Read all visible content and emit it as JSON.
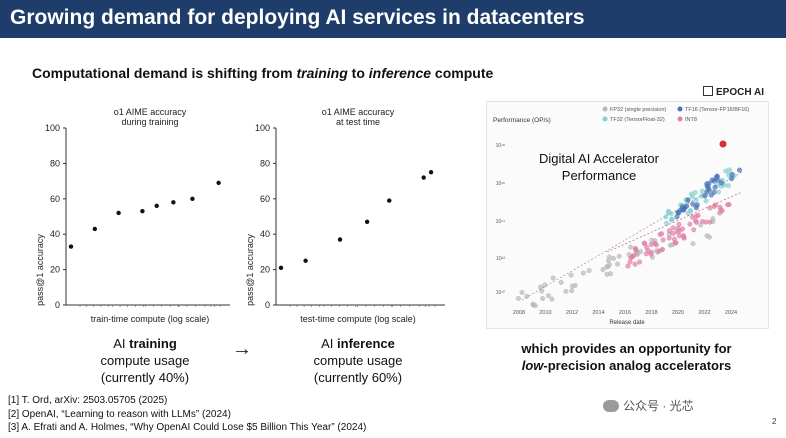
{
  "header": {
    "title": "Growing demand for deploying AI services in datacenters"
  },
  "subtitle": {
    "pre": "Computational demand is shifting from ",
    "em1": "training",
    "mid": " to ",
    "em2": "inference",
    "post": " compute"
  },
  "training_chart": {
    "title_line1": "o1 AIME accuracy",
    "title_line2": "during training",
    "ylabel": "pass@1 accuracy",
    "xlabel": "train-time compute (log scale)",
    "yticks": [
      "0",
      "20",
      "40",
      "60",
      "80",
      "100"
    ]
  },
  "inference_chart": {
    "title_line1": "o1 AIME accuracy",
    "title_line2": "at test time",
    "ylabel": "pass@1 accuracy",
    "xlabel": "test-time compute (log scale)",
    "yticks": [
      "0",
      "20",
      "40",
      "60",
      "80",
      "100"
    ]
  },
  "caption_training": {
    "ai": "AI ",
    "bold": "training",
    "line2": "compute usage",
    "line3": "(currently 40%)"
  },
  "caption_inference": {
    "ai": "AI ",
    "bold": "inference",
    "line2": "compute usage",
    "line3": "(currently 60%)"
  },
  "arrow": "→",
  "epoch": {
    "logo": "EPOCH AI",
    "title_line1": "Digital AI Accelerator",
    "title_line2": "Performance",
    "yaxis_label": "Performance (OP/s)",
    "xaxis_label": "Release date",
    "legend": [
      "FP32 (single precision)",
      "TF16 (Tensor-FP16/BF16)",
      "TF32 (TensorFloat-32)",
      "INT8"
    ],
    "yticks": [
      "10¹⁸",
      "10¹⁶",
      "10¹⁴",
      "10¹²",
      "10¹⁰"
    ],
    "xticks": [
      "2008",
      "2010",
      "2012",
      "2014",
      "2016",
      "2018",
      "2020",
      "2022",
      "2024"
    ],
    "colors": {
      "fp32": "#b8b8b8",
      "tf16": "#4a74b8",
      "tf32": "#86d0d3",
      "int8": "#e080a6"
    }
  },
  "right_caption": {
    "line1": "which provides an opportunity for",
    "em": "low",
    "line2_rest": "-precision analog accelerators"
  },
  "references": [
    "[1] T. Ord, arXiv: 2503.05705 (2025)",
    "[2] OpenAI, “Learning to reason with LLMs” (2024)",
    "[3] A. Efrati and A. Holmes, “Why OpenAI Could Lose $5 Billion This Year” (2024)"
  ],
  "watermark": "公众号 · 光芯",
  "page_number": "2",
  "chart_data": [
    {
      "type": "scatter",
      "title": "o1 AIME accuracy during training",
      "xlabel": "train-time compute (log scale)",
      "ylabel": "pass@1 accuracy",
      "ylim": [
        0,
        100
      ],
      "points": [
        {
          "x": 1,
          "y": 33
        },
        {
          "x": 2,
          "y": 43
        },
        {
          "x": 3,
          "y": 52
        },
        {
          "x": 4,
          "y": 53
        },
        {
          "x": 4.6,
          "y": 56
        },
        {
          "x": 5.3,
          "y": 58
        },
        {
          "x": 6.1,
          "y": 60
        },
        {
          "x": 7.2,
          "y": 69
        }
      ]
    },
    {
      "type": "scatter",
      "title": "o1 AIME accuracy at test time",
      "xlabel": "test-time compute (log scale)",
      "ylabel": "pass@1 accuracy",
      "ylim": [
        0,
        100
      ],
      "points": [
        {
          "x": 1,
          "y": 21
        },
        {
          "x": 2,
          "y": 25
        },
        {
          "x": 3.4,
          "y": 37
        },
        {
          "x": 4.5,
          "y": 47
        },
        {
          "x": 5.4,
          "y": 59
        },
        {
          "x": 6.8,
          "y": 72
        },
        {
          "x": 7.1,
          "y": 75
        }
      ]
    }
  ]
}
